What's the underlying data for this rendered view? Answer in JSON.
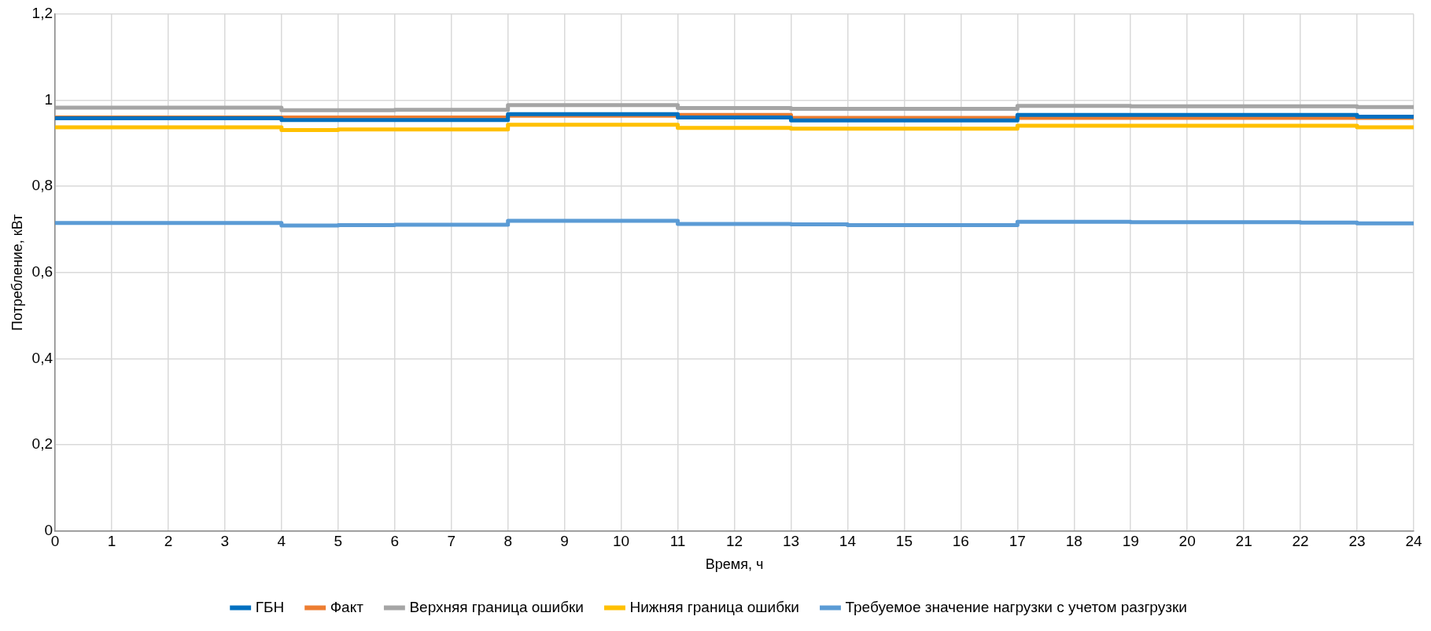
{
  "chart_data": {
    "type": "step",
    "xlabel": "Время, ч",
    "ylabel": "Потребление, кВт",
    "x": [
      0,
      1,
      2,
      3,
      4,
      5,
      6,
      7,
      8,
      9,
      10,
      11,
      12,
      13,
      14,
      15,
      16,
      17,
      18,
      19,
      20,
      21,
      22,
      23,
      24
    ],
    "series": [
      {
        "name": "ГБН",
        "color": "#0070c0",
        "values": [
          0.958,
          0.958,
          0.958,
          0.958,
          0.954,
          0.954,
          0.954,
          0.954,
          0.968,
          0.968,
          0.968,
          0.96,
          0.96,
          0.953,
          0.953,
          0.953,
          0.953,
          0.966,
          0.966,
          0.966,
          0.966,
          0.966,
          0.966,
          0.962,
          0.962
        ]
      },
      {
        "name": "Факт",
        "color": "#ed7d31",
        "values": [
          0.96,
          0.96,
          0.96,
          0.96,
          0.96,
          0.96,
          0.96,
          0.96,
          0.964,
          0.964,
          0.964,
          0.966,
          0.966,
          0.959,
          0.959,
          0.959,
          0.959,
          0.959,
          0.959,
          0.959,
          0.959,
          0.959,
          0.959,
          0.959,
          0.959
        ]
      },
      {
        "name": "Верхняя граница ошибки",
        "color": "#a5a5a5",
        "values": [
          0.983,
          0.983,
          0.983,
          0.983,
          0.977,
          0.977,
          0.978,
          0.978,
          0.989,
          0.989,
          0.989,
          0.982,
          0.982,
          0.98,
          0.98,
          0.98,
          0.98,
          0.987,
          0.987,
          0.986,
          0.986,
          0.986,
          0.986,
          0.984,
          0.984
        ]
      },
      {
        "name": "Нижняя граница ошибки",
        "color": "#ffc000",
        "values": [
          0.937,
          0.937,
          0.937,
          0.937,
          0.931,
          0.932,
          0.932,
          0.932,
          0.943,
          0.943,
          0.943,
          0.936,
          0.936,
          0.934,
          0.934,
          0.934,
          0.934,
          0.941,
          0.941,
          0.941,
          0.941,
          0.941,
          0.941,
          0.937,
          0.937
        ]
      },
      {
        "name": "Требуемое значение нагрузки с учетом разгрузки",
        "color": "#5b9bd5",
        "values": [
          0.715,
          0.715,
          0.715,
          0.715,
          0.709,
          0.71,
          0.711,
          0.711,
          0.72,
          0.72,
          0.72,
          0.713,
          0.713,
          0.712,
          0.71,
          0.71,
          0.71,
          0.718,
          0.718,
          0.717,
          0.717,
          0.717,
          0.716,
          0.714,
          0.714
        ]
      }
    ],
    "xlim": [
      0,
      24
    ],
    "xticks": [
      0,
      1,
      2,
      3,
      4,
      5,
      6,
      7,
      8,
      9,
      10,
      11,
      12,
      13,
      14,
      15,
      16,
      17,
      18,
      19,
      20,
      21,
      22,
      23,
      24
    ],
    "ylim": [
      0,
      1.2
    ],
    "yticks": [
      0,
      {
        "value": 0.2,
        "label": "0,2"
      },
      {
        "value": 0.4,
        "label": "0,4"
      },
      {
        "value": 0.6,
        "label": "0,6"
      },
      {
        "value": 0.8,
        "label": "0,8"
      },
      1,
      {
        "value": 1.2,
        "label": "1,2"
      }
    ],
    "grid": true,
    "legend": "bottom",
    "marker": "none",
    "line_style": "solid"
  }
}
